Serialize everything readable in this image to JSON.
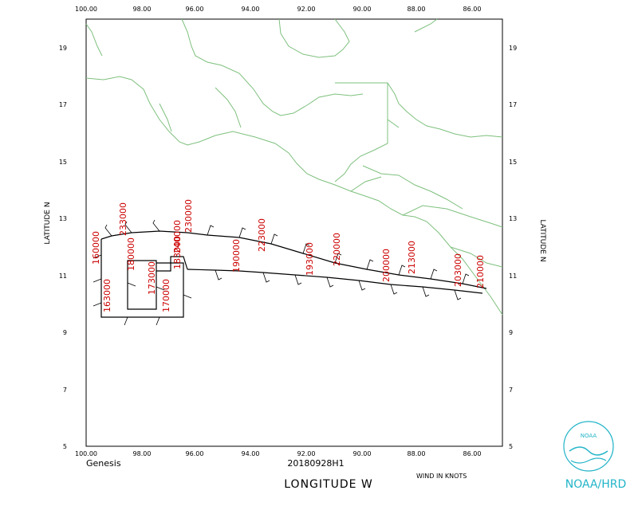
{
  "map": {
    "lon_ticks": [
      "100.00",
      "98.00",
      "96.00",
      "94.00",
      "92.00",
      "90.00",
      "88.00",
      "86.00"
    ],
    "lat_ticks": [
      "19",
      "17",
      "15",
      "13",
      "11",
      "9",
      "7",
      "5"
    ],
    "x_axis_title": "LONGITUDE  W",
    "y_axis_title_left": "LATITUDE  N",
    "y_axis_title_right": "LATITUDE  N",
    "storm_label": "Genesis",
    "flight_id": "20180928H1",
    "wind_units": "WIND IN KNOTS"
  },
  "time_labels": [
    "160000",
    "163000",
    "170000",
    "173000",
    "180000",
    "183000",
    "190000",
    "193000",
    "200000",
    "203000",
    "210000",
    "213000",
    "220000",
    "223000",
    "230000",
    "233000",
    "240000"
  ],
  "logo": {
    "text": "NOAA/HRD",
    "emblem_text": "NOAA"
  },
  "colors": {
    "coast": "#7ec07e",
    "track": "#000000",
    "time_label": "#cc0000",
    "logo": "#22b4c8"
  }
}
